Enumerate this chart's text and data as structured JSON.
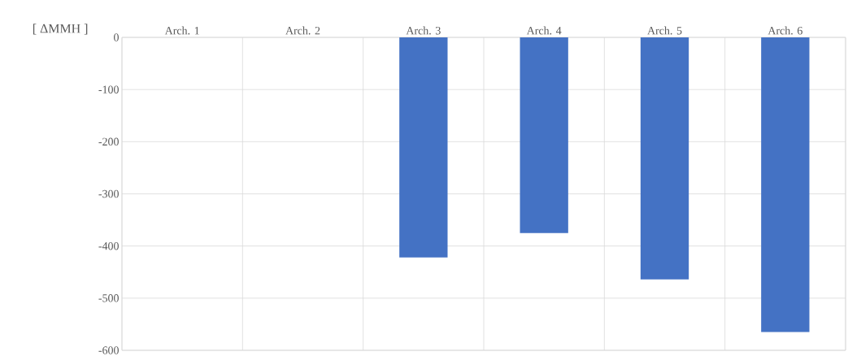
{
  "chart_data": {
    "type": "bar",
    "ylabel": "[ ΔMMH ]",
    "categories": [
      "Arch. 1",
      "Arch. 2",
      "Arch. 3",
      "Arch. 4",
      "Arch. 5",
      "Arch. 6"
    ],
    "values": [
      null,
      null,
      -422,
      -375,
      -464,
      -565
    ],
    "color": "#4472c4",
    "ylim": [
      -600,
      0
    ],
    "yticks": [
      0,
      -100,
      -200,
      -300,
      -400,
      -500,
      -600
    ],
    "grid": true
  }
}
